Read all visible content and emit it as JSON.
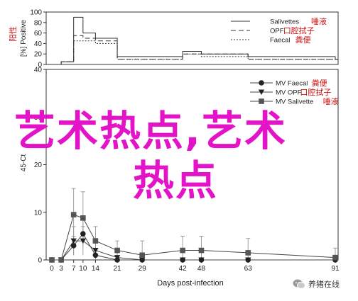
{
  "chart_data": [
    {
      "type": "line",
      "ylabel": "[%] Positive",
      "ylim": [
        0,
        100
      ],
      "yticks": [
        0,
        20,
        40,
        60,
        80,
        100
      ],
      "x": [
        0,
        3,
        7,
        10,
        14,
        21,
        29,
        42,
        48,
        63,
        91
      ],
      "series": [
        {
          "name": "Salivettes",
          "name_cn": "唾液",
          "style": "solid",
          "values": [
            0,
            5,
            90,
            60,
            50,
            15,
            15,
            25,
            20,
            15,
            10
          ]
        },
        {
          "name": "OPF",
          "name_cn": "口腔拭子",
          "style": "dashed",
          "values": [
            0,
            5,
            55,
            50,
            45,
            10,
            10,
            20,
            20,
            10,
            10
          ]
        },
        {
          "name": "Faecal",
          "name_cn": "粪便",
          "style": "dotted",
          "values": [
            0,
            5,
            45,
            45,
            40,
            10,
            10,
            20,
            15,
            10,
            10
          ]
        }
      ],
      "side_label": "阳性",
      "legend_position": "top-right"
    },
    {
      "type": "line",
      "ylabel": "45-Ct",
      "ylim": [
        0,
        40
      ],
      "yticks": [
        0,
        10,
        20,
        30,
        40
      ],
      "xlabel": "Days post-infection",
      "xticks": [
        0,
        3,
        7,
        10,
        14,
        21,
        29,
        42,
        48,
        63,
        91
      ],
      "series": [
        {
          "name": "MV Faecal",
          "name_cn": "粪便",
          "marker": "circle",
          "values": [
            0,
            0,
            3,
            5.5,
            1,
            0,
            0,
            0,
            0,
            0,
            0
          ],
          "err": [
            0,
            0,
            2,
            3,
            1,
            0,
            0,
            0,
            0,
            0,
            0
          ]
        },
        {
          "name": "MV OPF",
          "name_cn": "口腔拭子",
          "marker": "triangle",
          "values": [
            0,
            0,
            4,
            4,
            2,
            0.5,
            0,
            0,
            0,
            0,
            0
          ],
          "err": [
            0,
            0,
            3,
            3,
            2,
            1,
            0,
            0,
            0,
            0,
            0
          ]
        },
        {
          "name": "MV Salivette",
          "name_cn": "唾液",
          "marker": "square",
          "values": [
            0,
            0,
            9.5,
            8.8,
            4,
            2,
            1,
            2,
            2,
            1.5,
            0.5
          ],
          "err": [
            0,
            0,
            5.5,
            5.5,
            3,
            2,
            3,
            3,
            3,
            3,
            2
          ]
        }
      ],
      "legend_position": "top-right"
    }
  ],
  "watermark": {
    "line1": "艺术热点,艺术",
    "line2": "热点"
  },
  "credit": {
    "text": "养猪在线",
    "icon": "wechat-icon"
  },
  "colors": {
    "axis": "#333333",
    "text": "#222222",
    "red": "#cc1111",
    "watermark": "#e314c8"
  }
}
